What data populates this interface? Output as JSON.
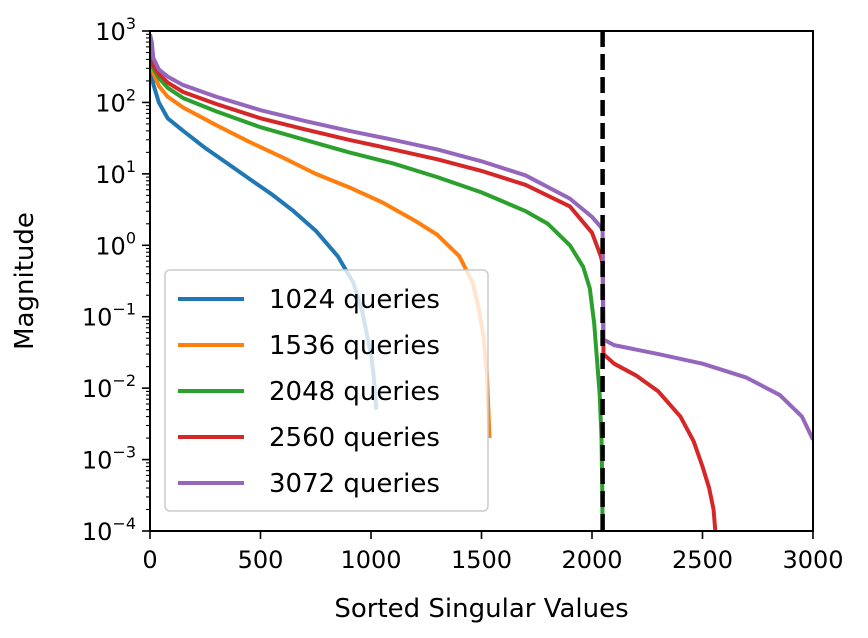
{
  "chart_data": {
    "type": "line",
    "xlabel": "Sorted Singular Values",
    "ylabel": "Magnitude",
    "xlim": [
      0,
      3000
    ],
    "ylim": [
      0.0001,
      1000
    ],
    "yscale": "log",
    "xticks": [
      {
        "value": 0,
        "label": "0"
      },
      {
        "value": 500,
        "label": "500"
      },
      {
        "value": 1000,
        "label": "1000"
      },
      {
        "value": 1500,
        "label": "1500"
      },
      {
        "value": 2000,
        "label": "2000"
      },
      {
        "value": 2500,
        "label": "2500"
      },
      {
        "value": 3000,
        "label": "3000"
      }
    ],
    "yticks": [
      {
        "value": 1000,
        "base": "10",
        "exp": "3"
      },
      {
        "value": 100,
        "base": "10",
        "exp": "2"
      },
      {
        "value": 10,
        "base": "10",
        "exp": "1"
      },
      {
        "value": 1,
        "base": "10",
        "exp": "0"
      },
      {
        "value": 0.1,
        "base": "10",
        "exp": "−1"
      },
      {
        "value": 0.01,
        "base": "10",
        "exp": "−2"
      },
      {
        "value": 0.001,
        "base": "10",
        "exp": "−3"
      },
      {
        "value": 0.0001,
        "base": "10",
        "exp": "−4"
      }
    ],
    "vline": {
      "x": 2048,
      "style": "dashed",
      "color": "#000000"
    },
    "grid": false,
    "legend_position": "lower-left",
    "series": [
      {
        "name": "1024 queries",
        "color": "#1f77b4",
        "points": [
          [
            0,
            400
          ],
          [
            15,
            180
          ],
          [
            40,
            100
          ],
          [
            80,
            60
          ],
          [
            150,
            40
          ],
          [
            250,
            23
          ],
          [
            350,
            14
          ],
          [
            450,
            8.5
          ],
          [
            550,
            5.2
          ],
          [
            650,
            3.0
          ],
          [
            750,
            1.6
          ],
          [
            850,
            0.7
          ],
          [
            920,
            0.3
          ],
          [
            960,
            0.12
          ],
          [
            985,
            0.05
          ],
          [
            1000,
            0.03
          ],
          [
            1012,
            0.015
          ],
          [
            1024,
            0.005
          ]
        ]
      },
      {
        "name": "1536 queries",
        "color": "#ff7f0e",
        "points": [
          [
            0,
            420
          ],
          [
            15,
            260
          ],
          [
            40,
            170
          ],
          [
            80,
            120
          ],
          [
            150,
            85
          ],
          [
            300,
            48
          ],
          [
            450,
            28
          ],
          [
            600,
            17
          ],
          [
            750,
            10
          ],
          [
            900,
            6.5
          ],
          [
            1050,
            4
          ],
          [
            1200,
            2.2
          ],
          [
            1300,
            1.4
          ],
          [
            1400,
            0.7
          ],
          [
            1460,
            0.3
          ],
          [
            1490,
            0.12
          ],
          [
            1510,
            0.05
          ],
          [
            1525,
            0.015
          ],
          [
            1536,
            0.002
          ]
        ]
      },
      {
        "name": "2048 queries",
        "color": "#2ca02c",
        "points": [
          [
            0,
            450
          ],
          [
            15,
            300
          ],
          [
            40,
            220
          ],
          [
            80,
            160
          ],
          [
            150,
            115
          ],
          [
            300,
            75
          ],
          [
            500,
            45
          ],
          [
            700,
            30
          ],
          [
            900,
            20
          ],
          [
            1100,
            14
          ],
          [
            1300,
            9
          ],
          [
            1500,
            5.5
          ],
          [
            1700,
            3
          ],
          [
            1800,
            2
          ],
          [
            1900,
            1
          ],
          [
            1960,
            0.5
          ],
          [
            1990,
            0.25
          ],
          [
            2010,
            0.08
          ],
          [
            2025,
            0.02
          ],
          [
            2035,
            0.008
          ],
          [
            2043,
            0.002
          ],
          [
            2046,
            0.0005
          ],
          [
            2048,
            0.0001
          ]
        ]
      },
      {
        "name": "2560 queries",
        "color": "#d62728",
        "points": [
          [
            0,
            470
          ],
          [
            15,
            330
          ],
          [
            40,
            250
          ],
          [
            80,
            190
          ],
          [
            150,
            140
          ],
          [
            300,
            95
          ],
          [
            500,
            60
          ],
          [
            700,
            42
          ],
          [
            900,
            30
          ],
          [
            1100,
            22
          ],
          [
            1300,
            16
          ],
          [
            1500,
            11
          ],
          [
            1700,
            7
          ],
          [
            1900,
            3.5
          ],
          [
            2000,
            1.5
          ],
          [
            2040,
            0.7
          ],
          [
            2048,
            0.55
          ],
          [
            2052,
            0.03
          ],
          [
            2100,
            0.022
          ],
          [
            2200,
            0.015
          ],
          [
            2300,
            0.009
          ],
          [
            2400,
            0.004
          ],
          [
            2460,
            0.0018
          ],
          [
            2500,
            0.0008
          ],
          [
            2530,
            0.0004
          ],
          [
            2550,
            0.0002
          ],
          [
            2558,
            0.0001
          ]
        ]
      },
      {
        "name": "3072 queries",
        "color": "#9467bd",
        "points": [
          [
            0,
            900
          ],
          [
            8,
            700
          ],
          [
            15,
            420
          ],
          [
            40,
            290
          ],
          [
            80,
            230
          ],
          [
            150,
            175
          ],
          [
            300,
            120
          ],
          [
            500,
            78
          ],
          [
            700,
            55
          ],
          [
            900,
            40
          ],
          [
            1100,
            30
          ],
          [
            1300,
            22
          ],
          [
            1500,
            15
          ],
          [
            1700,
            9.5
          ],
          [
            1900,
            4.5
          ],
          [
            2000,
            2.5
          ],
          [
            2040,
            1.8
          ],
          [
            2048,
            1.6
          ],
          [
            2052,
            0.048
          ],
          [
            2100,
            0.04
          ],
          [
            2300,
            0.03
          ],
          [
            2500,
            0.022
          ],
          [
            2700,
            0.014
          ],
          [
            2850,
            0.008
          ],
          [
            2950,
            0.004
          ],
          [
            3000,
            0.0019
          ]
        ]
      }
    ]
  }
}
